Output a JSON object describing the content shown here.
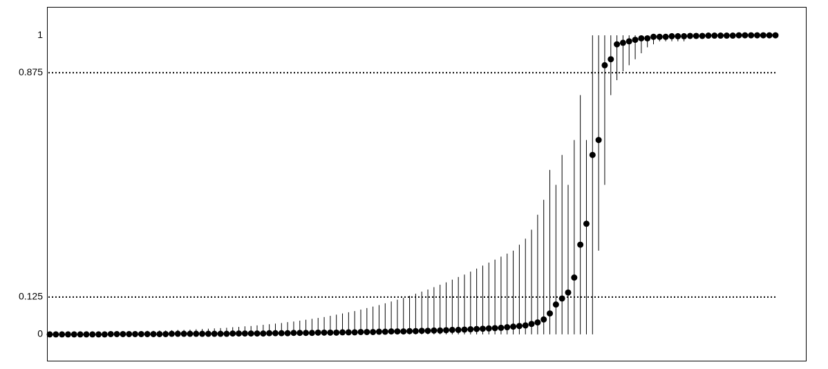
{
  "chart_data": {
    "type": "errorbar-dots",
    "ylim": [
      -0.088,
      1.095
    ],
    "yticks": [
      0,
      0.125,
      0.875,
      1
    ],
    "reference_lines": [
      0.125,
      0.875
    ],
    "color": "#000000",
    "values": [
      0,
      0,
      0,
      0,
      0,
      0,
      0,
      0,
      0,
      0,
      0.001,
      0.001,
      0.001,
      0.001,
      0.001,
      0.001,
      0.001,
      0.001,
      0.001,
      0.001,
      0.002,
      0.002,
      0.002,
      0.002,
      0.002,
      0.002,
      0.002,
      0.002,
      0.002,
      0.002,
      0.003,
      0.003,
      0.003,
      0.003,
      0.003,
      0.003,
      0.004,
      0.004,
      0.004,
      0.004,
      0.005,
      0.005,
      0.005,
      0.005,
      0.006,
      0.006,
      0.006,
      0.006,
      0.007,
      0.007,
      0.007,
      0.008,
      0.008,
      0.008,
      0.009,
      0.009,
      0.01,
      0.01,
      0.01,
      0.011,
      0.011,
      0.012,
      0.012,
      0.013,
      0.013,
      0.014,
      0.015,
      0.015,
      0.016,
      0.017,
      0.018,
      0.019,
      0.02,
      0.021,
      0.022,
      0.024,
      0.026,
      0.028,
      0.03,
      0.035,
      0.04,
      0.05,
      0.07,
      0.1,
      0.12,
      0.14,
      0.19,
      0.3,
      0.37,
      0.6,
      0.65,
      0.9,
      0.92,
      0.97,
      0.975,
      0.98,
      0.985,
      0.99,
      0.99,
      0.995,
      0.995,
      0.995,
      0.997,
      0.997,
      0.997,
      0.998,
      0.998,
      0.998,
      0.999,
      0.999,
      0.999,
      0.999,
      0.999,
      1,
      1,
      1,
      1,
      1,
      1,
      1
    ],
    "lower": [
      0,
      0,
      0,
      0,
      0,
      0,
      0,
      0,
      0,
      0,
      0,
      0,
      0,
      0,
      0,
      0,
      0,
      0,
      0,
      0,
      0,
      0,
      0,
      0,
      0,
      0,
      0,
      0,
      0,
      0,
      0,
      0,
      0,
      0,
      0,
      0,
      0,
      0,
      0,
      0,
      0,
      0,
      0,
      0,
      0,
      0,
      0,
      0,
      0,
      0,
      0,
      0,
      0,
      0,
      0,
      0,
      0,
      0,
      0,
      0,
      0,
      0,
      0,
      0,
      0,
      0,
      0,
      0,
      0,
      0,
      0,
      0,
      0,
      0,
      0,
      0,
      0,
      0,
      0,
      0,
      0,
      0,
      0,
      0,
      0,
      0,
      0,
      0,
      0,
      0,
      0.28,
      0.5,
      0.8,
      0.85,
      0.88,
      0.9,
      0.92,
      0.94,
      0.96,
      0.97,
      0.98,
      0.98,
      0.98,
      0.98,
      0.98,
      0.99,
      0.99,
      0.99,
      0.99,
      0.99,
      0.995,
      0.995,
      0.995,
      0.995,
      0.995,
      0.995,
      0.995,
      0.995,
      0.995,
      0.995
    ],
    "upper": [
      0.004,
      0.005,
      0.005,
      0.006,
      0.006,
      0.007,
      0.007,
      0.008,
      0.008,
      0.008,
      0.009,
      0.009,
      0.01,
      0.01,
      0.011,
      0.011,
      0.012,
      0.012,
      0.013,
      0.013,
      0.014,
      0.015,
      0.015,
      0.016,
      0.017,
      0.018,
      0.019,
      0.02,
      0.021,
      0.022,
      0.024,
      0.025,
      0.027,
      0.028,
      0.03,
      0.032,
      0.034,
      0.036,
      0.038,
      0.041,
      0.043,
      0.046,
      0.049,
      0.052,
      0.055,
      0.058,
      0.062,
      0.066,
      0.07,
      0.074,
      0.078,
      0.083,
      0.088,
      0.093,
      0.098,
      0.104,
      0.11,
      0.116,
      0.122,
      0.129,
      0.136,
      0.143,
      0.15,
      0.158,
      0.166,
      0.174,
      0.183,
      0.192,
      0.2,
      0.21,
      0.22,
      0.23,
      0.24,
      0.25,
      0.26,
      0.27,
      0.28,
      0.3,
      0.32,
      0.35,
      0.4,
      0.45,
      0.55,
      0.5,
      0.6,
      0.5,
      0.65,
      0.8,
      0.65,
      1,
      1,
      1,
      1,
      1,
      1,
      1,
      1,
      1,
      1,
      1,
      1,
      1,
      1,
      1,
      1,
      1,
      1,
      1,
      1,
      1,
      1,
      1,
      1,
      1,
      1,
      1,
      1,
      1,
      1,
      1
    ]
  }
}
